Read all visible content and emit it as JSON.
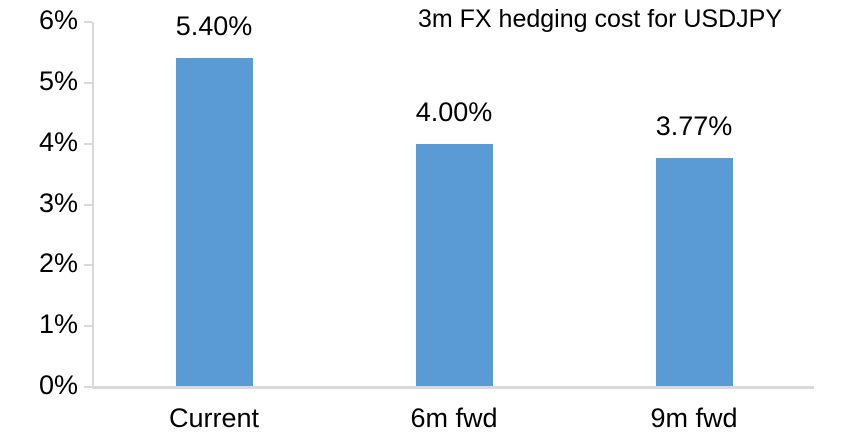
{
  "chart_data": {
    "type": "bar",
    "title": "3m FX hedging cost for USDJPY",
    "categories": [
      "Current",
      "6m fwd",
      "9m fwd"
    ],
    "values": [
      5.4,
      4.0,
      3.77
    ],
    "data_labels": [
      "5.40%",
      "4.00%",
      "3.77%"
    ],
    "xlabel": "",
    "ylabel": "",
    "ylim": [
      0,
      6
    ],
    "ytick_labels": [
      "0%",
      "1%",
      "2%",
      "3%",
      "4%",
      "5%",
      "6%"
    ],
    "grid": false,
    "legend": "none",
    "bar_color": "#5b9bd5",
    "axis_color": "#d9d9d9",
    "text_color": "#000000"
  }
}
